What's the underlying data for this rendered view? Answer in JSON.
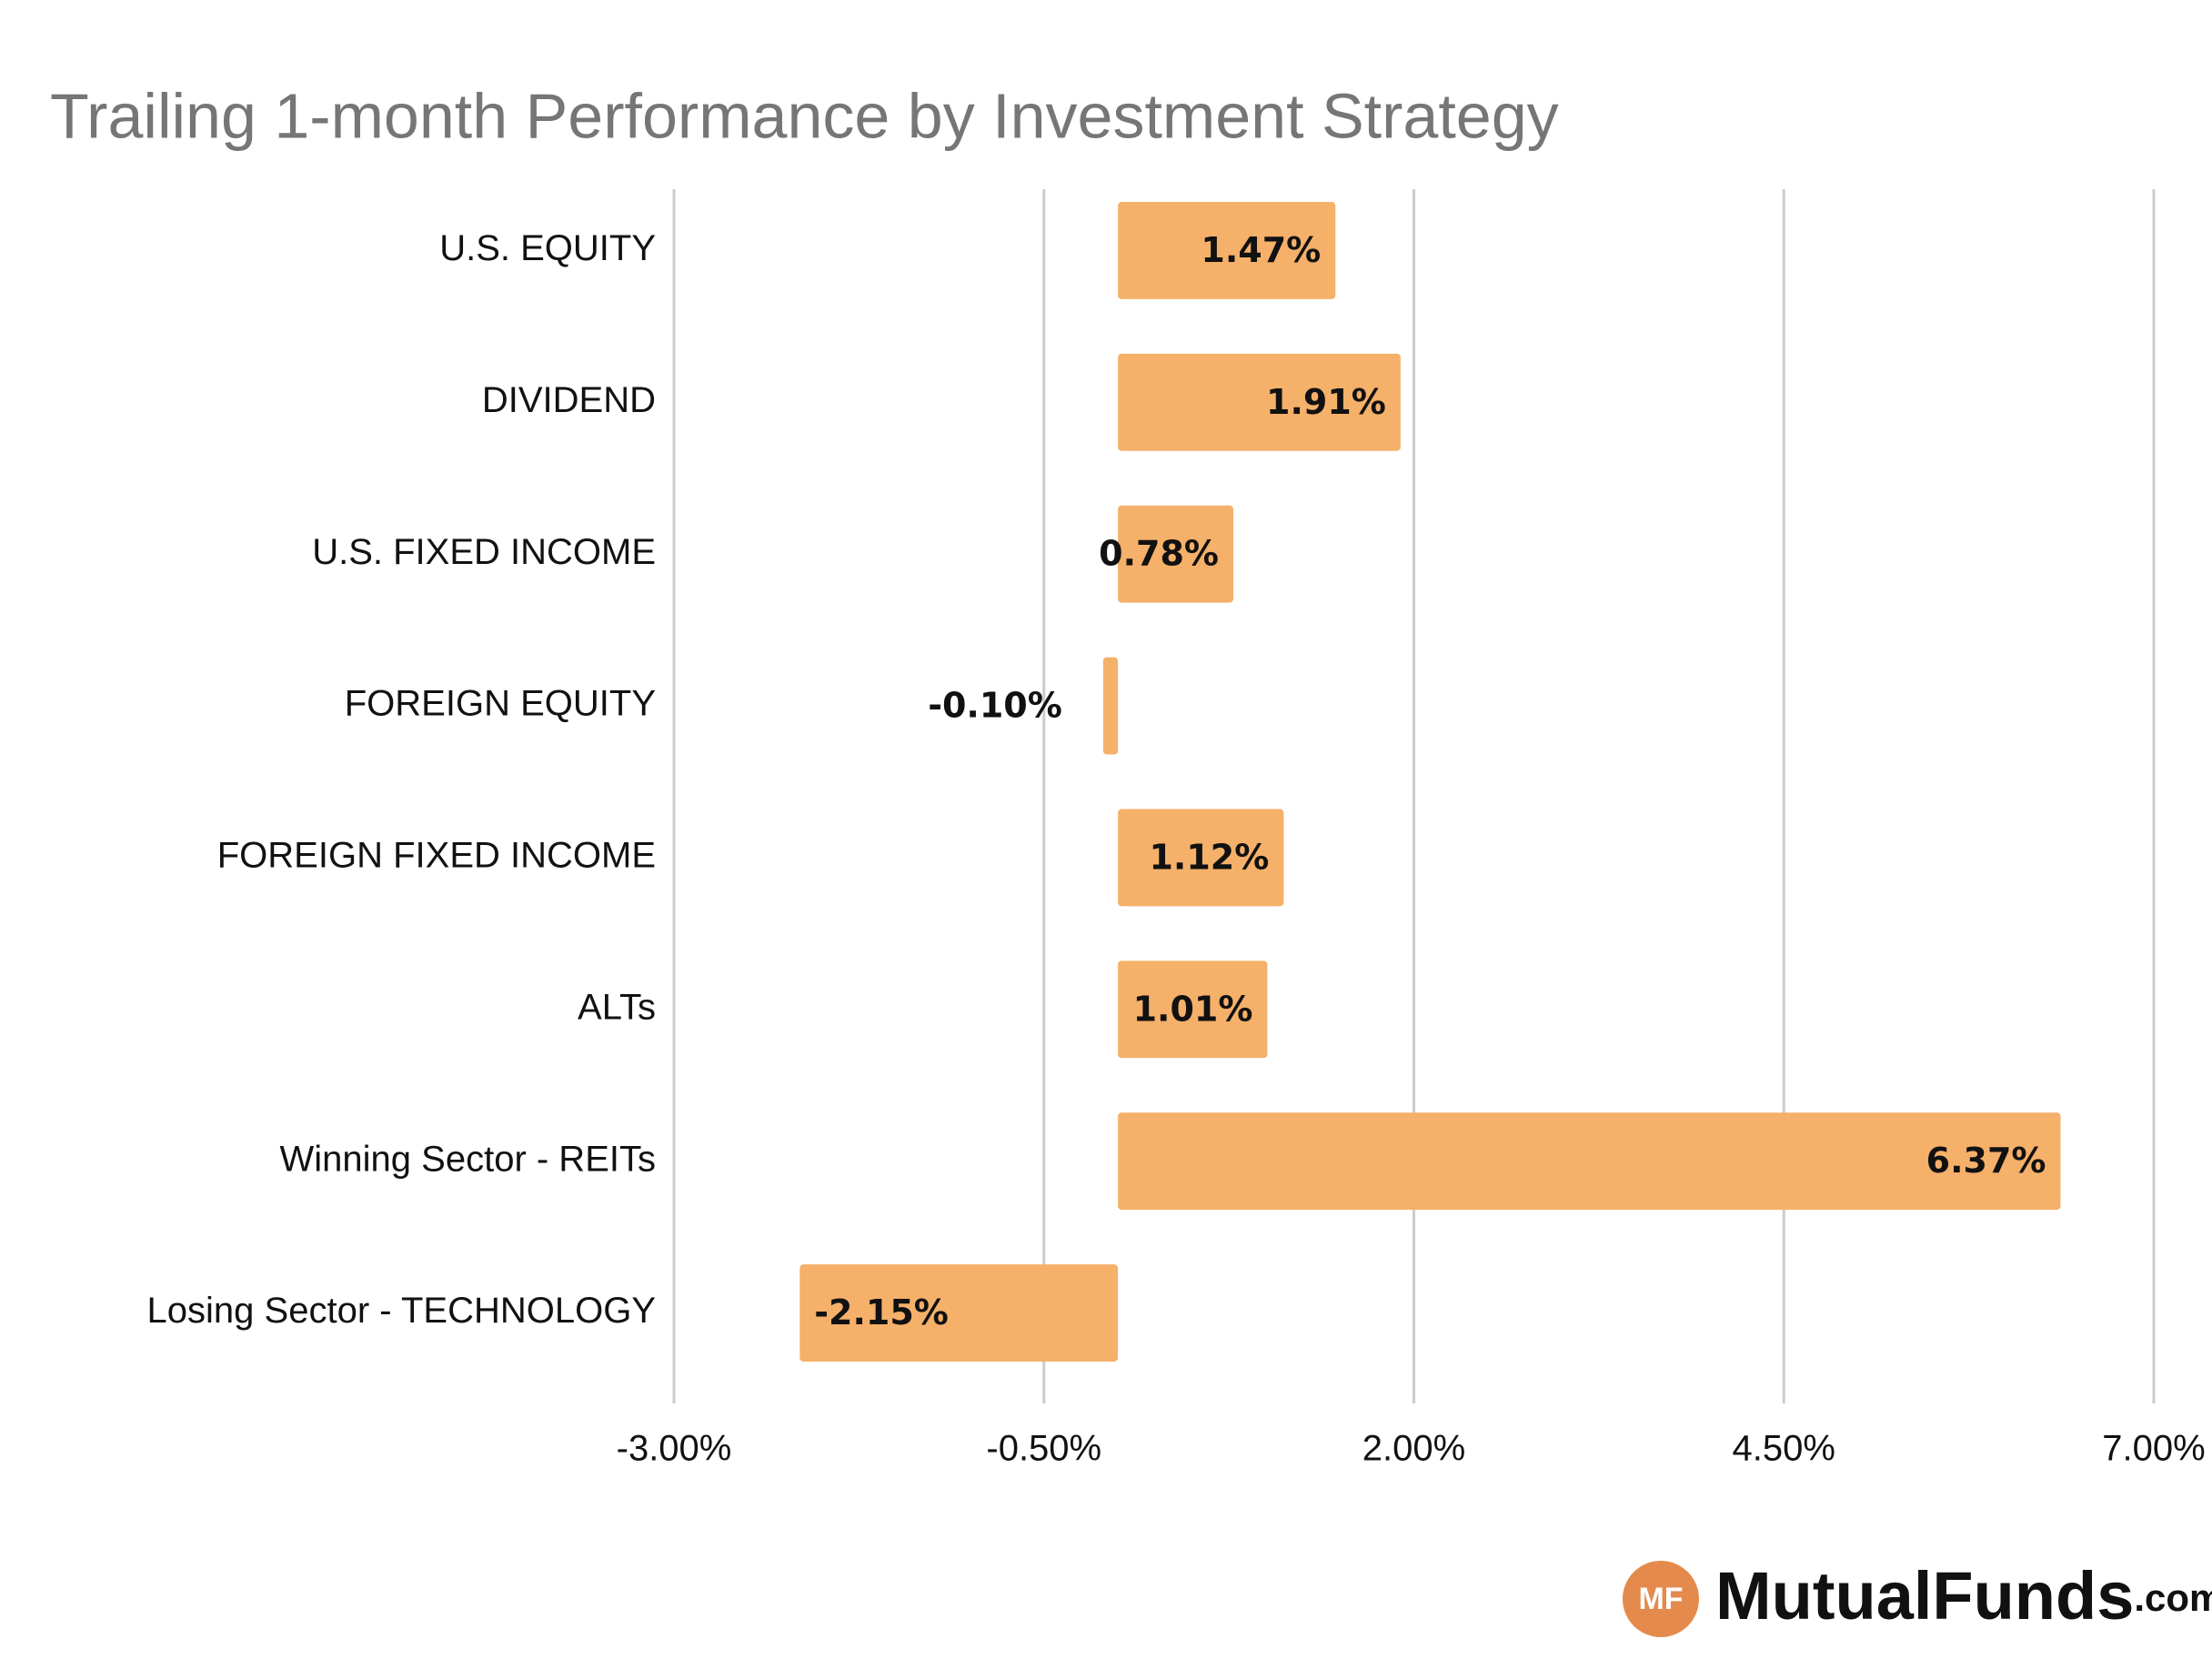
{
  "chart_data": {
    "type": "bar",
    "orientation": "horizontal",
    "title": "Trailing 1-month Performance by Investment Strategy",
    "categories": [
      "U.S. EQUITY",
      "DIVIDEND",
      "U.S. FIXED INCOME",
      "FOREIGN EQUITY",
      "FOREIGN FIXED INCOME",
      "ALTs",
      "Winning Sector - REITs",
      "Losing Sector - TECHNOLOGY"
    ],
    "values": [
      1.47,
      1.91,
      0.78,
      -0.1,
      1.12,
      1.01,
      6.37,
      -2.15
    ],
    "value_labels": [
      "1.47%",
      "1.91%",
      "0.78%",
      "-0.10%",
      "1.12%",
      "1.01%",
      "6.37%",
      "-2.15%"
    ],
    "color": "#f5b06a",
    "xlim": [
      -3,
      7
    ],
    "xticks": [
      {
        "value": -3,
        "label": "-3.00%"
      },
      {
        "value": -0.5,
        "label": "-0.50%"
      },
      {
        "value": 2,
        "label": "2.00%"
      },
      {
        "value": 4.5,
        "label": "4.50%"
      },
      {
        "value": 7,
        "label": "7.00%"
      }
    ],
    "grid": true
  },
  "logo": {
    "badge": "MF",
    "name": "MutualFunds",
    "suffix": ".com"
  }
}
